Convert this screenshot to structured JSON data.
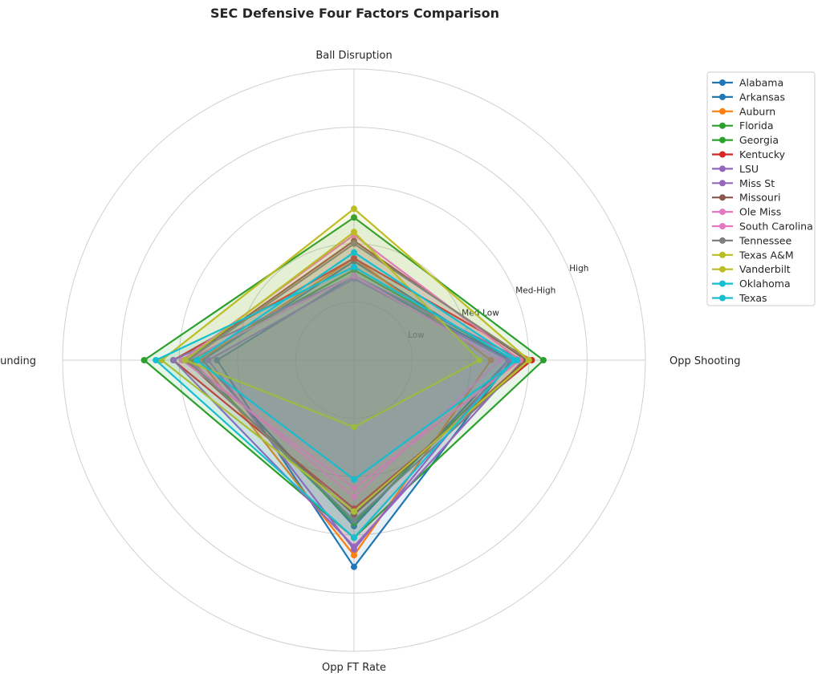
{
  "chart_data": {
    "type": "radar",
    "title": "SEC Defensive Four Factors Comparison",
    "axes": [
      "Ball Disruption",
      "Opp Shooting",
      "Opp FT Rate",
      "Def Rebounding"
    ],
    "rmax": 5,
    "rings": [
      1,
      2,
      3,
      4,
      5
    ],
    "ring_labels": [
      "Low",
      "Med-Low",
      "Med-High",
      "High"
    ],
    "grid": true,
    "legend_position": "top-right",
    "series": [
      {
        "name": "Alabama",
        "color": "#1f77b4",
        "values": [
          1.45,
          2.7,
          3.55,
          2.35
        ]
      },
      {
        "name": "Arkansas",
        "color": "#1f77b4",
        "values": [
          1.7,
          2.65,
          2.85,
          2.6
        ]
      },
      {
        "name": "Auburn",
        "color": "#ff7f0e",
        "values": [
          1.75,
          2.35,
          3.35,
          2.65
        ]
      },
      {
        "name": "Florida",
        "color": "#2ca02c",
        "values": [
          2.45,
          3.25,
          3.05,
          3.6
        ]
      },
      {
        "name": "Georgia",
        "color": "#2ca02c",
        "values": [
          1.55,
          2.75,
          2.8,
          2.8
        ]
      },
      {
        "name": "Kentucky",
        "color": "#d62728",
        "values": [
          1.75,
          3.05,
          2.55,
          3.1
        ]
      },
      {
        "name": "LSU",
        "color": "#9467bd",
        "values": [
          1.4,
          2.65,
          3.25,
          2.5
        ]
      },
      {
        "name": "Miss St",
        "color": "#9467bd",
        "values": [
          1.45,
          2.9,
          3.2,
          3.1
        ]
      },
      {
        "name": "Missouri",
        "color": "#8c564b",
        "values": [
          2.05,
          2.95,
          2.65,
          2.9
        ]
      },
      {
        "name": "Ole Miss",
        "color": "#e377c2",
        "values": [
          1.45,
          2.5,
          2.35,
          2.85
        ]
      },
      {
        "name": "South Carolina",
        "color": "#e377c2",
        "values": [
          2.15,
          2.85,
          2.2,
          2.95
        ]
      },
      {
        "name": "Tennessee",
        "color": "#7f7f7f",
        "values": [
          2.0,
          3.0,
          2.75,
          2.85
        ]
      },
      {
        "name": "Texas A&M",
        "color": "#bcbd22",
        "values": [
          2.6,
          3.0,
          2.6,
          3.3
        ]
      },
      {
        "name": "Vanderbilt",
        "color": "#bcbd22",
        "values": [
          2.2,
          2.15,
          1.15,
          2.9
        ]
      },
      {
        "name": "Oklahoma",
        "color": "#17becf",
        "values": [
          1.85,
          2.8,
          2.05,
          2.7
        ]
      },
      {
        "name": "Texas",
        "color": "#17becf",
        "values": [
          1.6,
          2.75,
          3.05,
          3.4
        ]
      }
    ]
  }
}
